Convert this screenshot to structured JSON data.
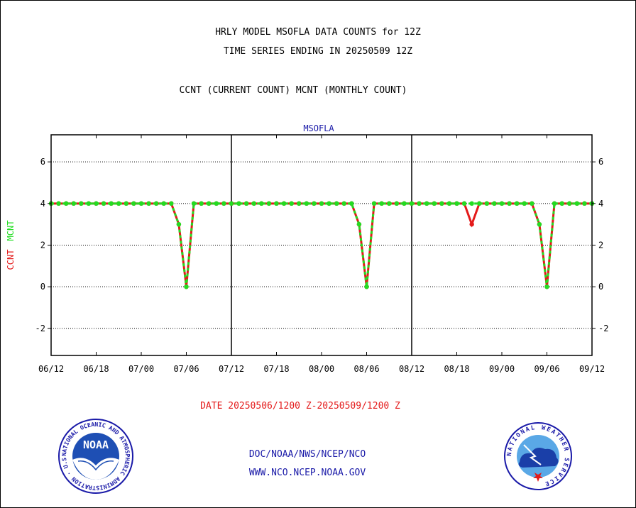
{
  "titles": {
    "line1": "HRLY MODEL MSOFLA DATA COUNTS for 12Z",
    "line2": "TIME SERIES ENDING IN 20250509 12Z",
    "line3": "CCNT (CURRENT COUNT) MCNT (MONTHLY COUNT)"
  },
  "footer": {
    "date_range": "DATE 20250506/1200 Z-20250509/1200 Z",
    "org": "DOC/NOAA/NWS/NCEP/NCO",
    "url": "WWW.NCO.NCEP.NOAA.GOV",
    "left_logo_text": "NOAA",
    "left_logo_ring": "NATIONAL OCEANIC AND ATMOSPHERIC ADMINISTRATION · U.S. DEPARTMENT OF COMMERCE ·",
    "right_logo_ring": "NATIONAL WEATHER SERVICE"
  },
  "colors": {
    "ccnt": "#e41a1a",
    "mcnt": "#22dd22",
    "text_blue": "#1a1aa8"
  },
  "chart_data": {
    "type": "line",
    "title": "MSOFLA",
    "ylabel_ccnt": "CCNT",
    "ylabel_mcnt": "MCNT",
    "ylim": [
      -3.3,
      7.3
    ],
    "yticks": [
      -2,
      0,
      2,
      4,
      6
    ],
    "ytick_labels": [
      "-2",
      "0",
      "2",
      "4",
      "6"
    ],
    "xlim": [
      0,
      72
    ],
    "xticks": [
      0,
      6,
      12,
      18,
      24,
      30,
      36,
      42,
      48,
      54,
      60,
      66,
      72
    ],
    "xtick_labels": [
      "06/12",
      "06/18",
      "07/00",
      "07/06",
      "07/12",
      "07/18",
      "08/00",
      "08/06",
      "08/12",
      "08/18",
      "09/00",
      "09/06",
      "09/12"
    ],
    "day_dividers": [
      24,
      48
    ],
    "grid": true,
    "series": [
      {
        "name": "CCNT",
        "values": [
          4,
          4,
          4,
          4,
          4,
          4,
          4,
          4,
          4,
          4,
          4,
          4,
          4,
          4,
          4,
          4,
          4,
          3,
          0,
          4,
          4,
          4,
          4,
          4,
          4,
          4,
          4,
          4,
          4,
          4,
          4,
          4,
          4,
          4,
          4,
          4,
          4,
          4,
          4,
          4,
          4,
          3,
          0,
          4,
          4,
          4,
          4,
          4,
          4,
          4,
          4,
          4,
          4,
          4,
          4,
          4,
          3,
          4,
          4,
          4,
          4,
          4,
          4,
          4,
          4,
          3,
          0,
          4,
          4,
          4,
          4,
          4,
          4
        ]
      },
      {
        "name": "MCNT",
        "values": [
          4,
          4,
          4,
          4,
          4,
          4,
          4,
          4,
          4,
          4,
          4,
          4,
          4,
          4,
          4,
          4,
          4,
          3,
          0,
          4,
          4,
          4,
          4,
          4,
          4,
          4,
          4,
          4,
          4,
          4,
          4,
          4,
          4,
          4,
          4,
          4,
          4,
          4,
          4,
          4,
          4,
          3,
          0,
          4,
          4,
          4,
          4,
          4,
          4,
          4,
          4,
          4,
          4,
          4,
          4,
          4,
          4,
          4,
          4,
          4,
          4,
          4,
          4,
          4,
          4,
          3,
          0,
          4,
          4,
          4,
          4,
          4,
          4
        ]
      }
    ]
  }
}
